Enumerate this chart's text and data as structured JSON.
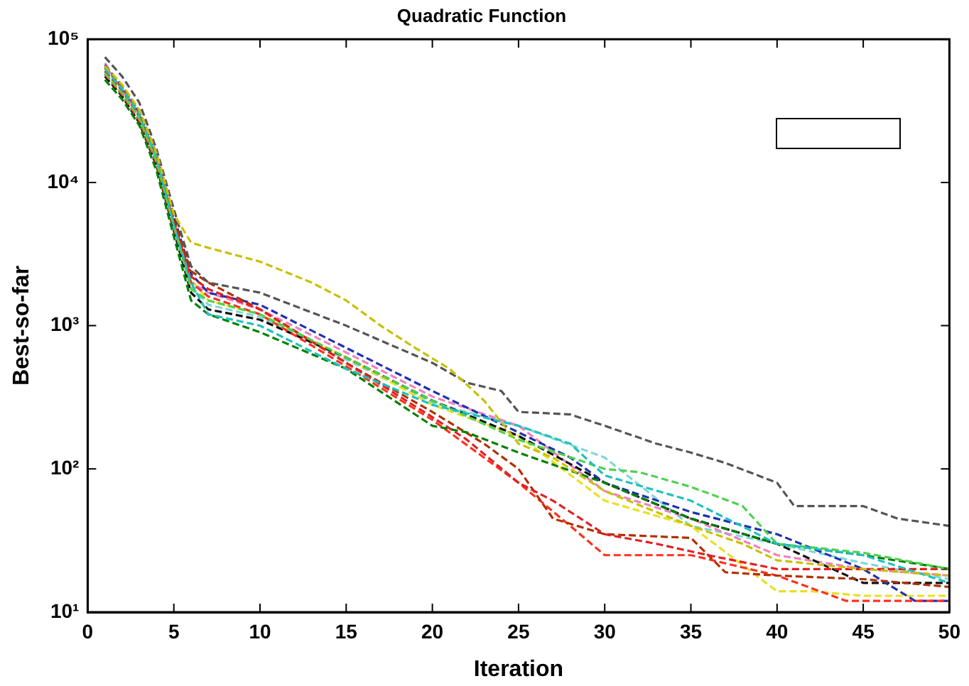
{
  "chart_data": {
    "type": "line",
    "title": "Quadratic Function",
    "xlabel": "Iteration",
    "ylabel": "Best-so-far",
    "log": "y",
    "grid": false,
    "marker": "none",
    "line_style": "dashed",
    "xlim": [
      0,
      50
    ],
    "xticks": [
      0,
      5,
      10,
      15,
      20,
      25,
      30,
      35,
      40,
      45,
      50
    ],
    "ylim": [
      10,
      100000
    ],
    "yticks": [
      {
        "value": 10,
        "label": "10¹"
      },
      {
        "value": 100,
        "label": "10²"
      },
      {
        "value": 1000,
        "label": "10³"
      },
      {
        "value": 10000,
        "label": "10⁴"
      },
      {
        "value": 100000,
        "label": "10⁵"
      }
    ],
    "series": [
      {
        "color": "#c8c000",
        "x": [
          1,
          2,
          3,
          4,
          5,
          6,
          7,
          10,
          13,
          15,
          17,
          19,
          21,
          23,
          25,
          27,
          30,
          33,
          35,
          38,
          40,
          45,
          50
        ],
        "values": [
          65000,
          48000,
          32000,
          16000,
          6000,
          3800,
          3500,
          2800,
          2000,
          1500,
          1000,
          700,
          500,
          300,
          150,
          120,
          70,
          50,
          40,
          30,
          23,
          20,
          18
        ]
      },
      {
        "color": "#555555",
        "x": [
          1,
          2,
          3,
          4,
          5,
          6,
          7,
          10,
          15,
          20,
          22,
          24,
          25,
          28,
          30,
          33,
          35,
          37,
          40,
          41,
          45,
          47,
          50
        ],
        "values": [
          75000,
          55000,
          36000,
          17000,
          6500,
          2600,
          2000,
          1700,
          1000,
          550,
          400,
          350,
          250,
          240,
          200,
          150,
          130,
          110,
          80,
          55,
          55,
          45,
          40
        ]
      },
      {
        "color": "#20c0c0",
        "x": [
          1,
          2,
          3,
          4,
          5,
          6,
          7,
          10,
          15,
          20,
          25,
          28,
          30,
          35,
          40,
          45,
          50
        ],
        "values": [
          62000,
          45000,
          30000,
          15000,
          5000,
          2000,
          1200,
          1000,
          500,
          280,
          200,
          150,
          90,
          60,
          30,
          25,
          16
        ]
      },
      {
        "color": "#50d050",
        "x": [
          1,
          2,
          3,
          4,
          5,
          6,
          7,
          10,
          15,
          20,
          25,
          30,
          32,
          35,
          38,
          40,
          45,
          50
        ],
        "values": [
          58000,
          42000,
          28000,
          14000,
          5000,
          1800,
          1500,
          1200,
          600,
          300,
          160,
          100,
          95,
          75,
          55,
          30,
          26,
          20
        ]
      },
      {
        "color": "#008000",
        "x": [
          1,
          2,
          3,
          4,
          5,
          6,
          7,
          10,
          15,
          20,
          22,
          25,
          30,
          35,
          40,
          45,
          50
        ],
        "values": [
          52000,
          38000,
          25000,
          12000,
          4200,
          1500,
          1200,
          900,
          500,
          200,
          180,
          130,
          80,
          45,
          30,
          25,
          20
        ]
      },
      {
        "color": "#e02020",
        "x": [
          1,
          2,
          3,
          4,
          5,
          6,
          7,
          10,
          15,
          20,
          22,
          25,
          27,
          30,
          33,
          36,
          40,
          45,
          50
        ],
        "values": [
          60000,
          44000,
          29000,
          15000,
          5200,
          2200,
          1800,
          1300,
          550,
          230,
          160,
          80,
          60,
          35,
          30,
          25,
          20,
          20,
          20
        ]
      },
      {
        "color": "#b03000",
        "x": [
          1,
          2,
          3,
          4,
          5,
          6,
          7,
          10,
          15,
          20,
          23,
          25,
          27,
          30,
          35,
          37,
          40,
          45,
          50
        ],
        "values": [
          64000,
          46000,
          31000,
          15500,
          5500,
          2400,
          2000,
          1300,
          550,
          250,
          150,
          100,
          45,
          35,
          33,
          19,
          18,
          17,
          15
        ]
      },
      {
        "color": "#ff3020",
        "x": [
          1,
          2,
          3,
          4,
          5,
          6,
          7,
          10,
          15,
          20,
          25,
          28,
          30,
          35,
          40,
          44,
          50
        ],
        "values": [
          57000,
          41000,
          27000,
          13500,
          4800,
          2000,
          1600,
          1200,
          520,
          220,
          80,
          40,
          25,
          25,
          18,
          12,
          12
        ]
      },
      {
        "color": "#2030b0",
        "x": [
          1,
          2,
          3,
          4,
          5,
          6,
          7,
          10,
          15,
          20,
          25,
          28,
          30,
          35,
          40,
          45,
          48,
          50
        ],
        "values": [
          66000,
          47000,
          31000,
          15800,
          5800,
          2300,
          1700,
          1400,
          700,
          350,
          180,
          120,
          80,
          50,
          35,
          20,
          12,
          12
        ]
      },
      {
        "color": "#111111",
        "x": [
          1,
          2,
          3,
          4,
          5,
          6,
          7,
          10,
          15,
          20,
          25,
          30,
          35,
          40,
          45,
          50
        ],
        "values": [
          55000,
          40000,
          26000,
          13000,
          4600,
          1700,
          1300,
          1100,
          600,
          300,
          170,
          80,
          45,
          30,
          16,
          16
        ]
      },
      {
        "color": "#f080c0",
        "x": [
          1,
          2,
          3,
          4,
          5,
          6,
          7,
          10,
          15,
          20,
          25,
          30,
          35,
          40,
          45,
          50
        ],
        "values": [
          68000,
          44000,
          29500,
          14500,
          5300,
          2000,
          1700,
          1300,
          650,
          320,
          200,
          70,
          45,
          25,
          20,
          18
        ]
      },
      {
        "color": "#e8e020",
        "x": [
          1,
          2,
          3,
          4,
          5,
          6,
          7,
          10,
          15,
          20,
          25,
          30,
          35,
          40,
          42,
          45,
          50
        ],
        "values": [
          63000,
          45000,
          30000,
          15000,
          5400,
          2100,
          1500,
          1200,
          600,
          280,
          170,
          60,
          40,
          14,
          14,
          13,
          13
        ]
      },
      {
        "color": "#80d8d8",
        "x": [
          1,
          2,
          3,
          4,
          5,
          6,
          7,
          10,
          15,
          20,
          25,
          30,
          35,
          40,
          45,
          50
        ],
        "values": [
          59000,
          43000,
          28500,
          14200,
          5100,
          1900,
          1400,
          1150,
          580,
          290,
          200,
          120,
          40,
          30,
          22,
          17
        ]
      }
    ]
  }
}
